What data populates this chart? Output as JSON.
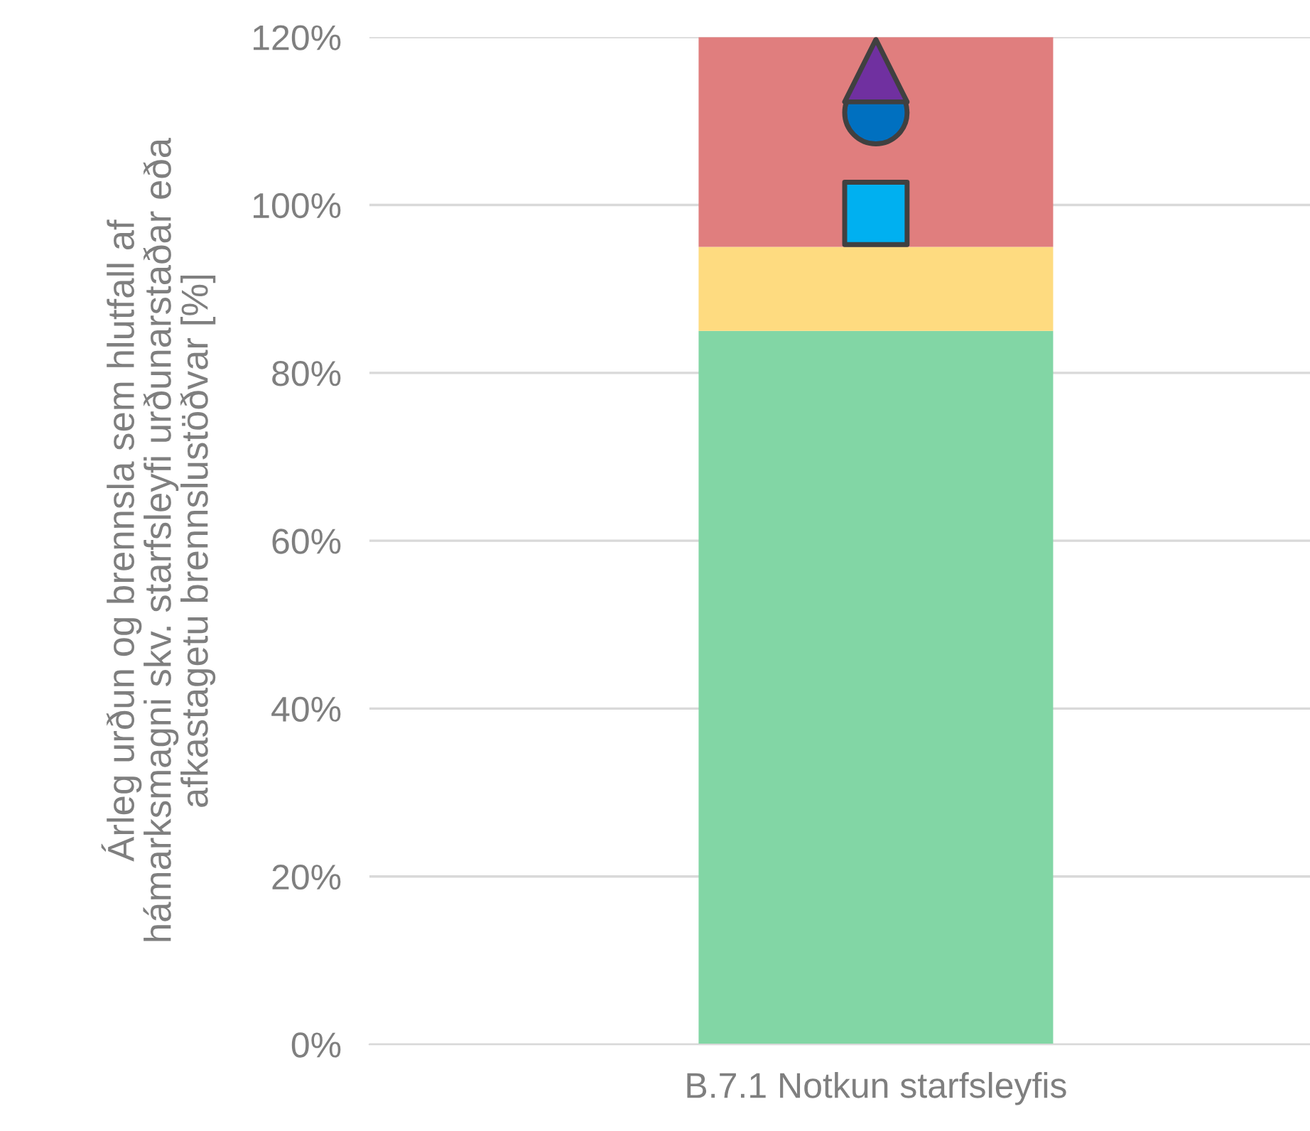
{
  "chart_data": {
    "type": "bar",
    "stacked": true,
    "categories": [
      "B.7.1 Notkun starfsleyfis"
    ],
    "ylabel": "Árleg urðun og brennsla sem hlutfall af\nhámarksmagni skv. starfsleyfi urðunarstaðar eða\nafkastagetu brennslustöðvar [%]",
    "series": [
      {
        "color": "#82d6a5",
        "values": [
          85
        ]
      },
      {
        "color": "#fedb80",
        "values": [
          10
        ]
      },
      {
        "color": "#e07e7e",
        "values": [
          25
        ]
      },
      {
        "type": "scatter",
        "marker": "square",
        "color": "#00b0f0",
        "x": [
          "B.7.1 Notkun starfsleyfis"
        ],
        "values": [
          99
        ]
      },
      {
        "type": "scatter",
        "marker": "circle",
        "color": "#0070c0",
        "x": [
          "B.7.1 Notkun starfsleyfis"
        ],
        "values": [
          111
        ]
      },
      {
        "type": "scatter",
        "marker": "triangle",
        "color": "#7030a0",
        "x": [
          "B.7.1 Notkun starfsleyfis"
        ],
        "values": [
          116
        ]
      }
    ],
    "ylim": [
      0,
      120
    ],
    "yticks": [
      {
        "value": 0,
        "label": "0%"
      },
      {
        "value": 20,
        "label": "20%"
      },
      {
        "value": 40,
        "label": "40%"
      },
      {
        "value": 60,
        "label": "60%"
      },
      {
        "value": 80,
        "label": "80%"
      },
      {
        "value": 100,
        "label": "100%"
      },
      {
        "value": 120,
        "label": "120%"
      }
    ],
    "grid": "y",
    "legend": false
  }
}
